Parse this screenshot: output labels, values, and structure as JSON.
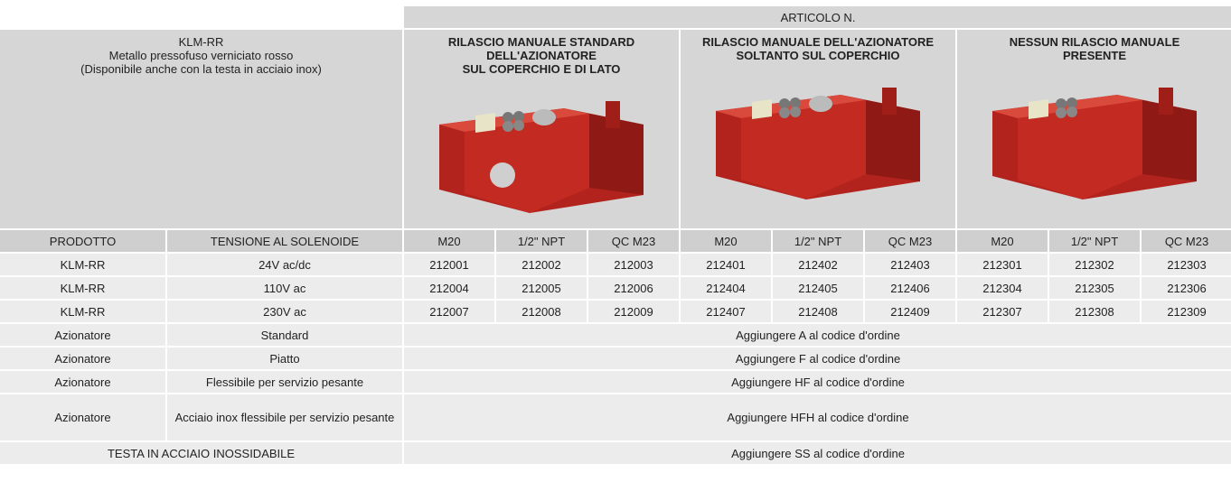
{
  "header": {
    "group_title": "ARTICOLO N.",
    "product": {
      "name": "KLM-RR",
      "lines": [
        "Metallo pressofuso verniciato rosso",
        "(Disponibile anche con la testa in acciaio inox)"
      ]
    },
    "variants": [
      {
        "lines": [
          "RILASCIO MANUALE STANDARD",
          "DELL'AZIONATORE",
          "SUL COPERCHIO E DI LATO"
        ]
      },
      {
        "lines": [
          "RILASCIO MANUALE  DELL'AZIONATORE",
          "SOLTANTO SUL COPERCHIO"
        ]
      },
      {
        "lines": [
          "NESSUN RILASCIO MANUALE",
          "PRESENTE"
        ]
      }
    ]
  },
  "table": {
    "columns": [
      "PRODOTTO",
      "TENSIONE AL SOLENOIDE",
      "M20",
      "1/2\" NPT",
      "QC  M23",
      "M20",
      "1/2\" NPT",
      "QC  M23",
      "M20",
      "1/2\" NPT",
      "QC  M23"
    ],
    "rows": [
      [
        "KLM-RR",
        "24V ac/dc",
        "212001",
        "212002",
        "212003",
        "212401",
        "212402",
        "212403",
        "212301",
        "212302",
        "212303"
      ],
      [
        "KLM-RR",
        "110V ac",
        "212004",
        "212005",
        "212006",
        "212404",
        "212405",
        "212406",
        "212304",
        "212305",
        "212306"
      ],
      [
        "KLM-RR",
        "230V ac",
        "212007",
        "212008",
        "212009",
        "212407",
        "212408",
        "212409",
        "212307",
        "212308",
        "212309"
      ]
    ],
    "options": [
      [
        "Azionatore",
        "Standard",
        "Aggiungere A al codice d'ordine"
      ],
      [
        "Azionatore",
        "Piatto",
        "Aggiungere F al codice d'ordine"
      ],
      [
        "Azionatore",
        "Flessibile per servizio pesante",
        "Aggiungere HF al codice d'ordine"
      ],
      [
        "Azionatore",
        "Acciaio inox flessibile per servizio pesante",
        "Aggiungere HFH al codice d'ordine"
      ]
    ],
    "stainless": [
      "TESTA IN ACCIAIO INOSSIDABILE",
      "Aggiungere SS al codice d'ordine"
    ]
  }
}
